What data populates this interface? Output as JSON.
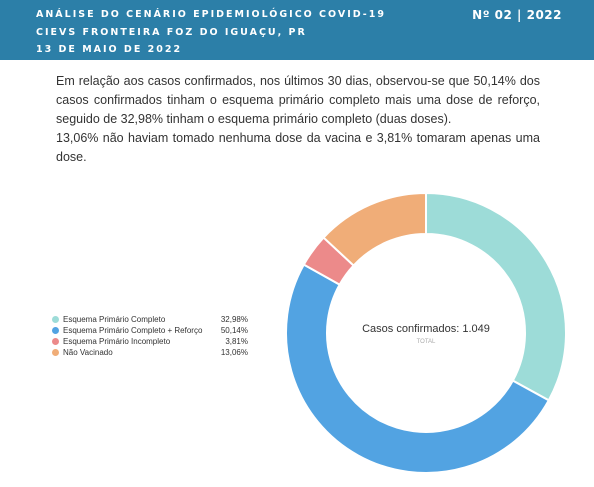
{
  "header": {
    "line1": "ANÁLISE DO CENÁRIO EPIDEMIOLÓGICO COVID-19",
    "line2": "CIEVS FRONTEIRA FOZ DO IGUAÇU, PR",
    "line3": "13 DE MAIO DE 2022",
    "issue": "Nº 02 | 2022"
  },
  "paragraph": {
    "p1": "Em relação aos casos confirmados, nos últimos 30 dias, observou-se que 50,14% dos casos confirmados tinham o esquema primário completo mais uma dose de reforço, seguido de 32,98% tinham o esquema primário completo (duas doses).",
    "p2": "13,06% não haviam tomado nenhuma dose da vacina e 3,81% tomaram apenas uma dose."
  },
  "chart_data": {
    "type": "pie",
    "donut": true,
    "categories": [
      "Esquema Primário Completo",
      "Esquema Primário Completo + Reforço",
      "Esquema Primário Incompleto",
      "Não Vacinado"
    ],
    "values": [
      32.98,
      50.14,
      3.81,
      13.06
    ],
    "value_labels": [
      "32,98%",
      "50,14%",
      "3,81%",
      "13,06%"
    ],
    "colors": [
      "#9ddcd8",
      "#52a3e2",
      "#ec8a8a",
      "#f0ad78"
    ],
    "center_title": "Casos confirmados: 1.049",
    "center_subtitle": "TOTAL",
    "legend_position": "left"
  }
}
